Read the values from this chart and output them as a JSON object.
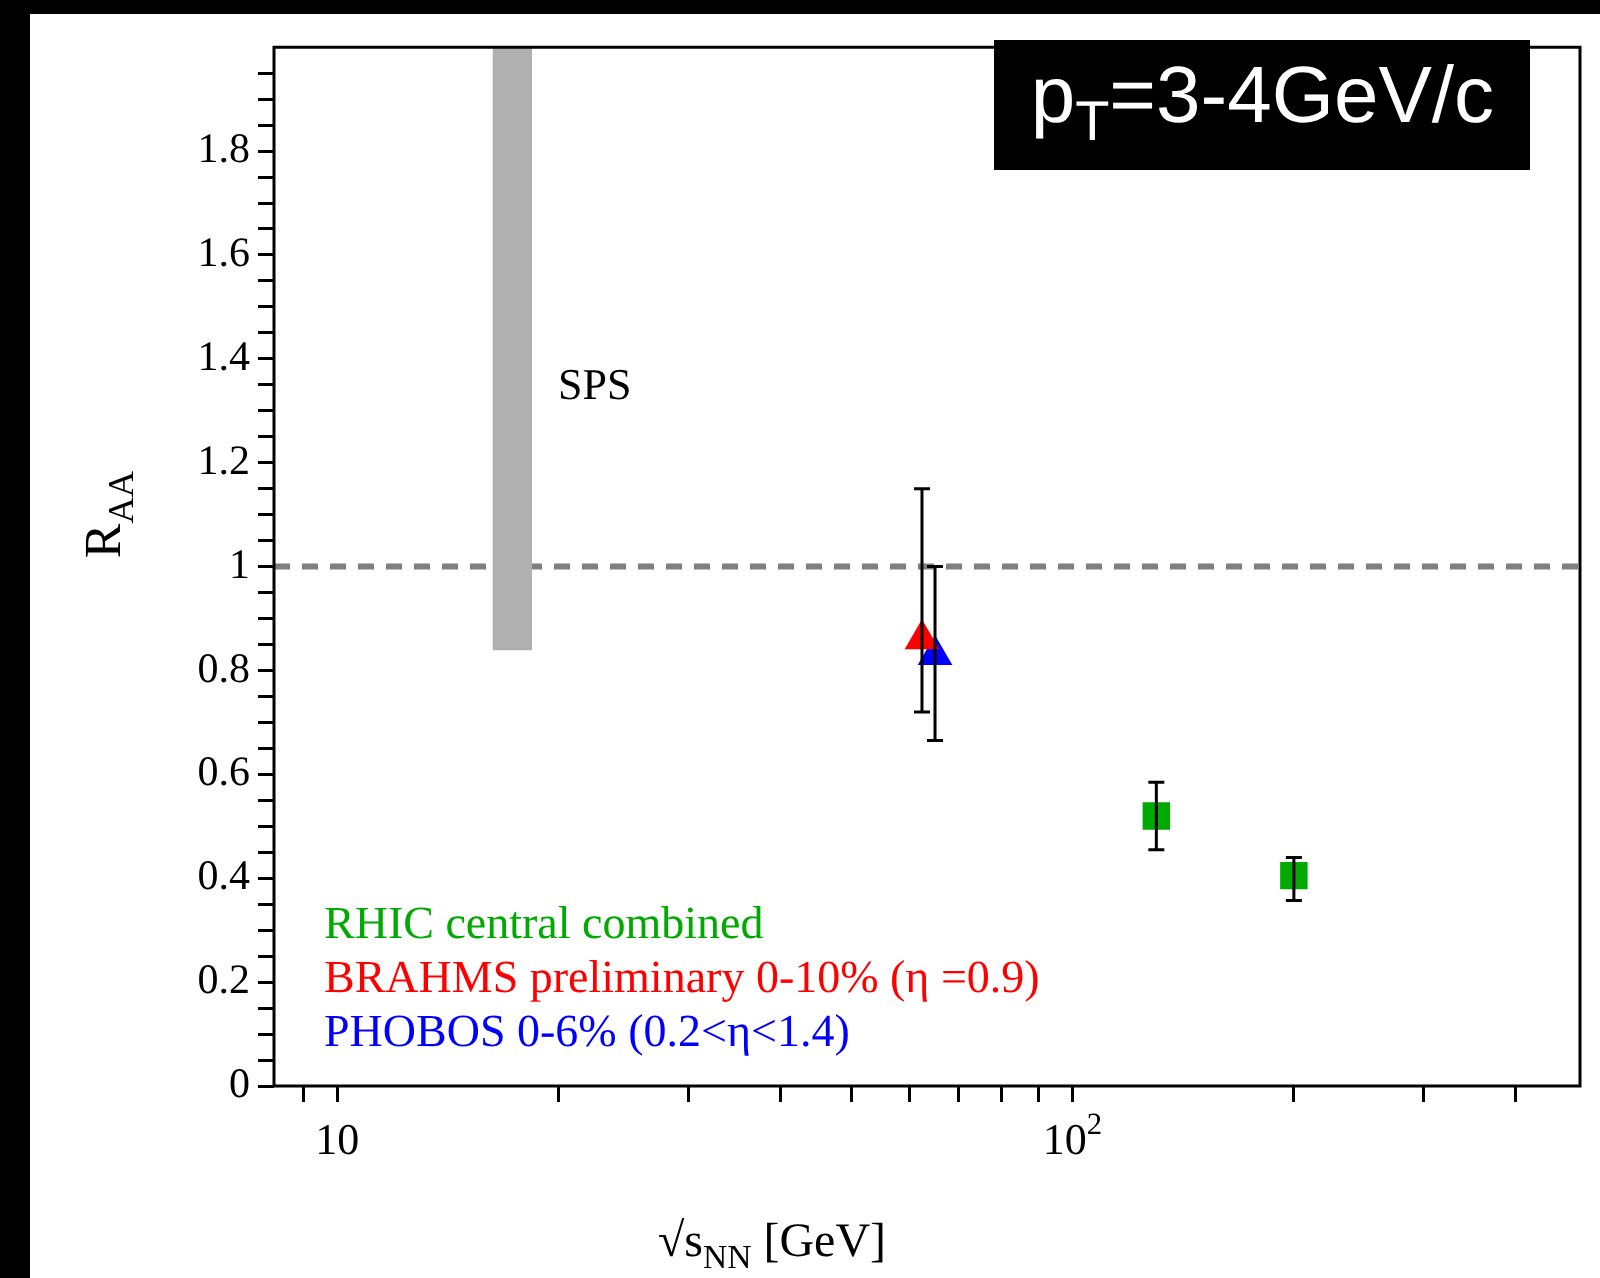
{
  "chart_data": {
    "type": "scatter",
    "title": "p$_{T}$=3-4GeV/c",
    "xlabel": "√s$_{NN}$ [GeV]",
    "ylabel": "R$_{AA}$",
    "log": "x",
    "xlim": [
      8.2,
      490
    ],
    "ylim": [
      0,
      2
    ],
    "xticks": [
      {
        "value": 9,
        "label": null
      },
      {
        "value": 10,
        "label": "10"
      },
      {
        "value": 20,
        "label": null
      },
      {
        "value": 30,
        "label": null
      },
      {
        "value": 40,
        "label": null
      },
      {
        "value": 50,
        "label": null
      },
      {
        "value": 60,
        "label": null
      },
      {
        "value": 70,
        "label": null
      },
      {
        "value": 80,
        "label": null
      },
      {
        "value": 90,
        "label": null
      },
      {
        "value": 100,
        "label": "10$^{2}$"
      },
      {
        "value": 200,
        "label": null
      },
      {
        "value": 300,
        "label": null
      },
      {
        "value": 400,
        "label": null
      }
    ],
    "yticks": [
      0,
      {
        "value": 0.05,
        "label": null
      },
      {
        "value": 0.1,
        "label": null
      },
      {
        "value": 0.15,
        "label": null
      },
      0.2,
      {
        "value": 0.25,
        "label": null
      },
      {
        "value": 0.3,
        "label": null
      },
      {
        "value": 0.35,
        "label": null
      },
      0.4,
      {
        "value": 0.45,
        "label": null
      },
      {
        "value": 0.5,
        "label": null
      },
      {
        "value": 0.55,
        "label": null
      },
      0.6,
      {
        "value": 0.65,
        "label": null
      },
      {
        "value": 0.7,
        "label": null
      },
      {
        "value": 0.75,
        "label": null
      },
      0.8,
      {
        "value": 0.85,
        "label": null
      },
      {
        "value": 0.9,
        "label": null
      },
      {
        "value": 0.95,
        "label": null
      },
      1,
      {
        "value": 1.05,
        "label": null
      },
      {
        "value": 1.1,
        "label": null
      },
      {
        "value": 1.15,
        "label": null
      },
      1.2,
      {
        "value": 1.25,
        "label": null
      },
      {
        "value": 1.3,
        "label": null
      },
      {
        "value": 1.35,
        "label": null
      },
      1.4,
      {
        "value": 1.45,
        "label": null
      },
      {
        "value": 1.5,
        "label": null
      },
      {
        "value": 1.55,
        "label": null
      },
      1.6,
      {
        "value": 1.65,
        "label": null
      },
      {
        "value": 1.7,
        "label": null
      },
      {
        "value": 1.75,
        "label": null
      },
      1.8,
      {
        "value": 1.85,
        "label": null
      },
      {
        "value": 1.9,
        "label": null
      },
      {
        "value": 1.95,
        "label": null
      }
    ],
    "grid": false,
    "series": [
      {
        "type": "bar",
        "color": "#b0b0b0",
        "x": [
          17.3
        ],
        "base": [
          0.84
        ],
        "values": [
          1.16
        ]
      },
      {
        "name": "RHIC central combined",
        "color": "#00aa00",
        "marker": "square",
        "x": [
          130,
          200
        ],
        "values": [
          0.52,
          0.405
        ],
        "errors": [
          [
            0.455,
            0.585
          ],
          [
            0.357,
            0.44
          ]
        ]
      },
      {
        "name": "BRAHMS preliminary 0-10% (η =0.9)",
        "color": "#ff0000",
        "marker": "triangle",
        "x": [
          62.4
        ],
        "values": [
          0.86
        ],
        "errors": [
          [
            0.72,
            1.15
          ]
        ]
      },
      {
        "name": "PHOBOS 0-6% (0.2<η<1.4)",
        "color": "#0000ff",
        "marker": "triangle",
        "x": [
          65
        ],
        "values": [
          0.83
        ],
        "errors": [
          [
            0.665,
            1.0
          ]
        ]
      }
    ],
    "ref_lines": [
      {
        "axis": "y",
        "value": 1,
        "color": "#808080",
        "line_style": "dashed"
      }
    ],
    "annotations": [
      "SPS"
    ]
  }
}
